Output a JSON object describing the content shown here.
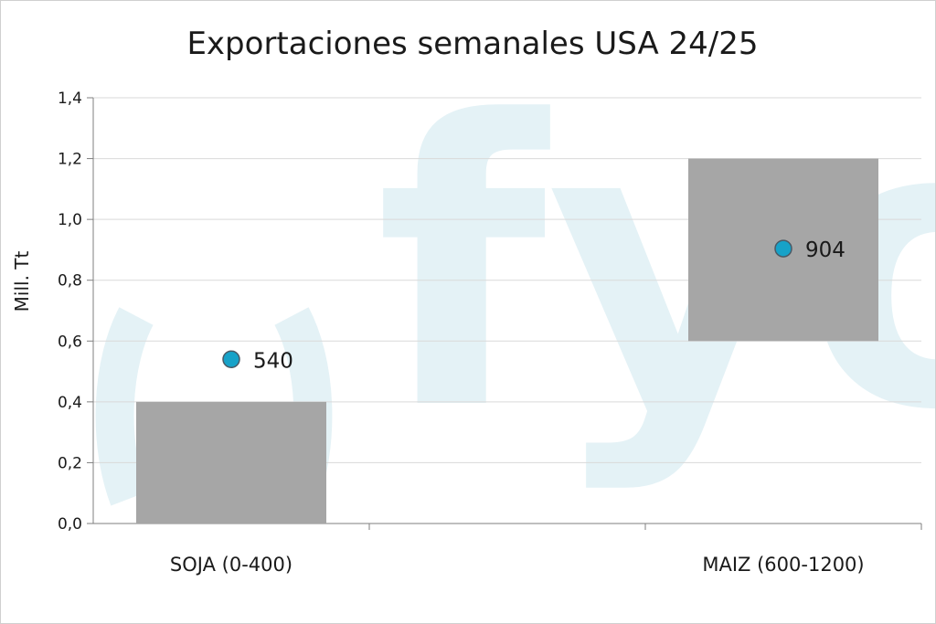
{
  "chart_data": {
    "type": "bar",
    "title": "Exportaciones semanales USA 24/25",
    "ylabel": "Mill. Tt",
    "xlabel": "",
    "ylim": [
      0,
      1.4
    ],
    "yticks": [
      "0,0",
      "0,2",
      "0,4",
      "0,6",
      "0,8",
      "1,0",
      "1,2",
      "1,4"
    ],
    "ytick_values": [
      0,
      0.2,
      0.4,
      0.6,
      0.8,
      1.0,
      1.2,
      1.4
    ],
    "categories": [
      "SOJA (0-400)",
      "MAIZ (600-1200)"
    ],
    "ranges": [
      {
        "low": 0.0,
        "high": 0.4
      },
      {
        "low": 0.6,
        "high": 1.2
      }
    ],
    "points": [
      {
        "value": 0.54,
        "label": "540"
      },
      {
        "value": 0.904,
        "label": "904"
      }
    ],
    "grid": true,
    "legend": "none",
    "colors": {
      "range_bar": "#a6a6a6",
      "marker": "#17a2c8",
      "marker_edge": "#4a5a66",
      "grid": "#d9d9d9",
      "axis": "#7f7f7f",
      "watermark": "#e4f2f6"
    },
    "watermark": "fyo"
  }
}
